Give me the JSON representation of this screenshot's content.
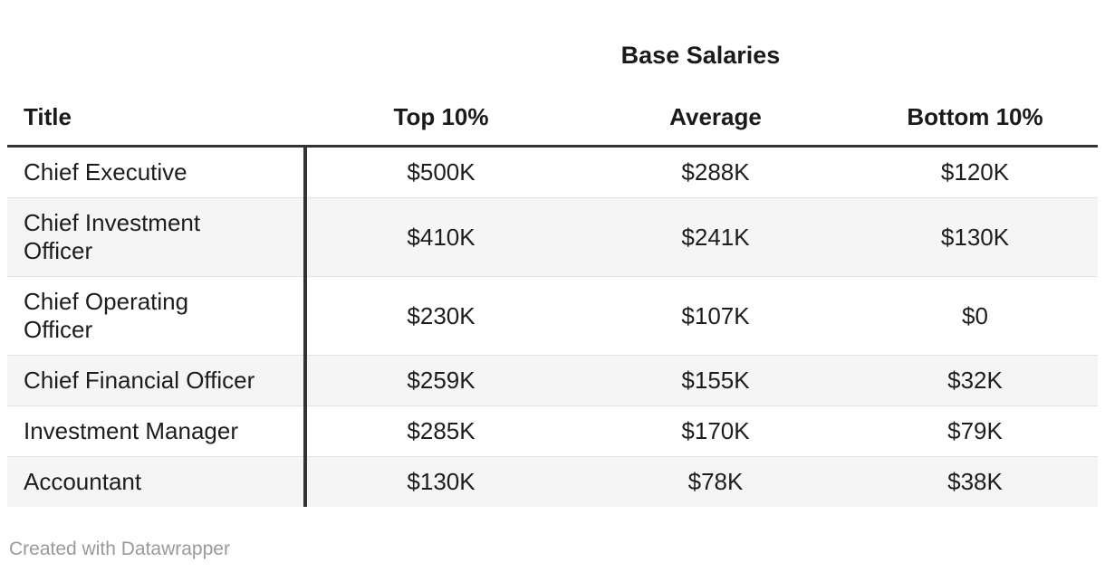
{
  "header": {
    "title": "Base Salaries"
  },
  "table": {
    "columns": {
      "title": "Title",
      "top10": "Top 10%",
      "average": "Average",
      "bottom10": "Bottom 10%"
    },
    "rows": [
      {
        "title": "Chief Executive",
        "top10": "$500K",
        "average": "$288K",
        "bottom10": "$120K"
      },
      {
        "title": "Chief Investment\nOfficer",
        "top10": "$410K",
        "average": "$241K",
        "bottom10": "$130K"
      },
      {
        "title": "Chief Operating\nOfficer",
        "top10": "$230K",
        "average": "$107K",
        "bottom10": "$0"
      },
      {
        "title": "Chief Financial Officer",
        "top10": "$259K",
        "average": "$155K",
        "bottom10": "$32K"
      },
      {
        "title": "Investment Manager",
        "top10": "$285K",
        "average": "$170K",
        "bottom10": "$79K"
      },
      {
        "title": "Accountant",
        "top10": "$130K",
        "average": "$78K",
        "bottom10": "$38K"
      }
    ]
  },
  "footer": {
    "attribution": "Created with Datawrapper"
  },
  "colors": {
    "text": "#1d1d1d",
    "rule": "#333333",
    "zebra_row": "#f5f5f5",
    "row_separator": "#e2e2e2",
    "muted_text": "#9a9a9a",
    "background": "#ffffff"
  },
  "chart_data": {
    "type": "table",
    "title": "Base Salaries",
    "columns": [
      "Title",
      "Top 10%",
      "Average",
      "Bottom 10%"
    ],
    "rows": [
      [
        "Chief Executive",
        "$500K",
        "$288K",
        "$120K"
      ],
      [
        "Chief Investment Officer",
        "$410K",
        "$241K",
        "$130K"
      ],
      [
        "Chief Operating Officer",
        "$230K",
        "$107K",
        "$0"
      ],
      [
        "Chief Financial Officer",
        "$259K",
        "$155K",
        "$32K"
      ],
      [
        "Investment Manager",
        "$285K",
        "$170K",
        "$79K"
      ],
      [
        "Accountant",
        "$130K",
        "$78K",
        "$38K"
      ]
    ],
    "layout": {
      "zebra_striping": true,
      "value_columns_centered": true,
      "title_column_divider": true
    }
  }
}
